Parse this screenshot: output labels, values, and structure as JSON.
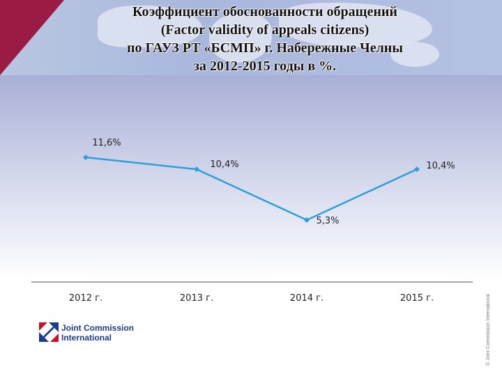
{
  "slide": {
    "title_lines": [
      "Коэффициент  обоснованности обращений",
      "(Factor validity of appeals citizens)",
      "по ГАУЗ РТ «БСМП»  г. Набережные Челны",
      "за 2012-2015 годы в %."
    ],
    "logo_line1": "Joint Commission",
    "logo_line2": "International",
    "watermark": "© Joint Commission International",
    "colors": {
      "corner": "#9a1c45",
      "line": "#2e9fd9",
      "logo": "#1d3b8f",
      "logo_red": "#c8102e"
    }
  },
  "chart_data": {
    "type": "line",
    "categories": [
      "2012 г.",
      "2013 г.",
      "2014 г.",
      "2015 г."
    ],
    "series": [
      {
        "values": [
          11.6,
          10.4,
          5.3,
          10.4
        ],
        "labels": [
          "11,6%",
          "10,4%",
          "5,3%",
          "10,4%"
        ]
      }
    ],
    "title": "",
    "xlabel": "",
    "ylabel": "",
    "ylim": [
      0,
      14
    ],
    "grid": false,
    "legend": "none"
  }
}
